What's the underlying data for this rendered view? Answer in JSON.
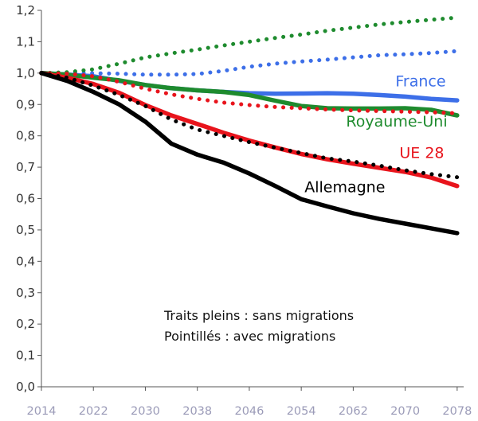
{
  "chart_data": {
    "type": "line",
    "x": [
      2014,
      2022,
      2030,
      2038,
      2046,
      2054,
      2062,
      2070,
      2078
    ],
    "xlim": [
      2014,
      2079
    ],
    "ylim": [
      0,
      1.2
    ],
    "yticks": [
      0,
      0.1,
      0.2,
      0.3,
      0.4,
      0.5,
      0.6,
      0.7,
      0.8,
      0.9,
      1.0,
      1.1,
      1.2
    ],
    "ytick_labels": [
      "0,0",
      "0,1",
      "0,2",
      "0,3",
      "0,4",
      "0,5",
      "0,6",
      "0,7",
      "0,8",
      "0,9",
      "1,0",
      "1,1",
      "1,2"
    ],
    "xtick_labels": [
      "2014",
      "2022",
      "2030",
      "2038",
      "2046",
      "2054",
      "2062",
      "2070",
      "2078"
    ],
    "grid": false,
    "annotations": [
      "Traits pleins : sans migrations",
      "Pointillés : avec migrations"
    ],
    "series": [
      {
        "name": "France",
        "color": "#3d6fe8",
        "style": "solid",
        "label_ref": "France",
        "points": [
          [
            2014,
            1.0
          ],
          [
            2018,
            0.995
          ],
          [
            2022,
            0.99
          ],
          [
            2026,
            0.975
          ],
          [
            2030,
            0.962
          ],
          [
            2034,
            0.952
          ],
          [
            2038,
            0.945
          ],
          [
            2042,
            0.94
          ],
          [
            2046,
            0.936
          ],
          [
            2050,
            0.934
          ],
          [
            2054,
            0.935
          ],
          [
            2058,
            0.936
          ],
          [
            2062,
            0.934
          ],
          [
            2066,
            0.93
          ],
          [
            2070,
            0.925
          ],
          [
            2074,
            0.918
          ],
          [
            2078,
            0.913
          ]
        ]
      },
      {
        "color": "#3d6fe8",
        "style": "dotted",
        "label_ref": "France",
        "points": [
          [
            2014,
            1.0
          ],
          [
            2020,
            1.0
          ],
          [
            2026,
            0.998
          ],
          [
            2030,
            0.995
          ],
          [
            2034,
            0.995
          ],
          [
            2038,
            0.997
          ],
          [
            2042,
            1.007
          ],
          [
            2046,
            1.02
          ],
          [
            2050,
            1.03
          ],
          [
            2054,
            1.037
          ],
          [
            2058,
            1.043
          ],
          [
            2062,
            1.05
          ],
          [
            2066,
            1.057
          ],
          [
            2070,
            1.06
          ],
          [
            2074,
            1.064
          ],
          [
            2078,
            1.07
          ]
        ]
      },
      {
        "name": "Royaume-Uni",
        "color": "#1e8b2e",
        "style": "solid",
        "label_ref": "Royaume-Uni",
        "points": [
          [
            2014,
            1.0
          ],
          [
            2018,
            0.995
          ],
          [
            2022,
            0.985
          ],
          [
            2026,
            0.977
          ],
          [
            2030,
            0.962
          ],
          [
            2034,
            0.952
          ],
          [
            2038,
            0.945
          ],
          [
            2042,
            0.94
          ],
          [
            2046,
            0.93
          ],
          [
            2050,
            0.912
          ],
          [
            2054,
            0.895
          ],
          [
            2058,
            0.888
          ],
          [
            2062,
            0.887
          ],
          [
            2066,
            0.887
          ],
          [
            2070,
            0.888
          ],
          [
            2074,
            0.883
          ],
          [
            2078,
            0.865
          ]
        ]
      },
      {
        "color": "#1e8b2e",
        "style": "dotted",
        "label_ref": "Royaume-Uni",
        "points": [
          [
            2014,
            1.0
          ],
          [
            2018,
            1.003
          ],
          [
            2022,
            1.012
          ],
          [
            2026,
            1.03
          ],
          [
            2030,
            1.05
          ],
          [
            2034,
            1.063
          ],
          [
            2038,
            1.075
          ],
          [
            2042,
            1.088
          ],
          [
            2046,
            1.1
          ],
          [
            2050,
            1.112
          ],
          [
            2054,
            1.123
          ],
          [
            2058,
            1.135
          ],
          [
            2062,
            1.145
          ],
          [
            2066,
            1.155
          ],
          [
            2070,
            1.163
          ],
          [
            2074,
            1.17
          ],
          [
            2078,
            1.177
          ]
        ]
      },
      {
        "name": "UE 28",
        "color": "#e8141c",
        "style": "solid",
        "label_ref": "UE 28",
        "points": [
          [
            2014,
            1.0
          ],
          [
            2018,
            0.985
          ],
          [
            2022,
            0.965
          ],
          [
            2026,
            0.937
          ],
          [
            2030,
            0.898
          ],
          [
            2034,
            0.865
          ],
          [
            2038,
            0.838
          ],
          [
            2042,
            0.81
          ],
          [
            2046,
            0.785
          ],
          [
            2050,
            0.763
          ],
          [
            2054,
            0.742
          ],
          [
            2058,
            0.725
          ],
          [
            2062,
            0.711
          ],
          [
            2066,
            0.698
          ],
          [
            2070,
            0.685
          ],
          [
            2074,
            0.667
          ],
          [
            2078,
            0.64
          ]
        ]
      },
      {
        "color": "#e8141c",
        "style": "dotted",
        "label_ref": "UE 28",
        "points": [
          [
            2014,
            1.0
          ],
          [
            2018,
            0.998
          ],
          [
            2022,
            0.99
          ],
          [
            2026,
            0.972
          ],
          [
            2030,
            0.95
          ],
          [
            2034,
            0.932
          ],
          [
            2038,
            0.918
          ],
          [
            2042,
            0.906
          ],
          [
            2046,
            0.898
          ],
          [
            2050,
            0.892
          ],
          [
            2054,
            0.888
          ],
          [
            2058,
            0.884
          ],
          [
            2062,
            0.881
          ],
          [
            2066,
            0.879
          ],
          [
            2070,
            0.877
          ],
          [
            2074,
            0.875
          ],
          [
            2078,
            0.872
          ]
        ]
      },
      {
        "name": "Allemagne",
        "color": "#000000",
        "style": "solid",
        "label_ref": "Allemagne",
        "points": [
          [
            2014,
            1.0
          ],
          [
            2018,
            0.975
          ],
          [
            2022,
            0.94
          ],
          [
            2026,
            0.9
          ],
          [
            2030,
            0.845
          ],
          [
            2034,
            0.775
          ],
          [
            2038,
            0.74
          ],
          [
            2042,
            0.715
          ],
          [
            2046,
            0.68
          ],
          [
            2050,
            0.64
          ],
          [
            2054,
            0.598
          ],
          [
            2058,
            0.575
          ],
          [
            2062,
            0.553
          ],
          [
            2066,
            0.535
          ],
          [
            2070,
            0.52
          ],
          [
            2074,
            0.505
          ],
          [
            2078,
            0.49
          ]
        ]
      },
      {
        "color": "#000000",
        "style": "dotted",
        "label_ref": "Allemagne",
        "points": [
          [
            2014,
            1.0
          ],
          [
            2018,
            0.985
          ],
          [
            2022,
            0.96
          ],
          [
            2026,
            0.93
          ],
          [
            2030,
            0.895
          ],
          [
            2034,
            0.852
          ],
          [
            2038,
            0.82
          ],
          [
            2042,
            0.8
          ],
          [
            2046,
            0.78
          ],
          [
            2050,
            0.762
          ],
          [
            2054,
            0.745
          ],
          [
            2058,
            0.728
          ],
          [
            2062,
            0.718
          ],
          [
            2066,
            0.705
          ],
          [
            2070,
            0.69
          ],
          [
            2074,
            0.678
          ],
          [
            2078,
            0.668
          ]
        ]
      }
    ],
    "series_labels": [
      {
        "text": "France",
        "color": "#3d6fe8",
        "at": [
          2068.5,
          0.958
        ],
        "anchor": "start"
      },
      {
        "text": "Royaume-Uni",
        "color": "#1e8b2e",
        "at": [
          2076.5,
          0.83
        ],
        "anchor": "end"
      },
      {
        "text": "UE 28",
        "color": "#e8141c",
        "at": [
          2076,
          0.73
        ],
        "anchor": "end"
      },
      {
        "text": "Allemagne",
        "color": "#000000",
        "at": [
          2054.5,
          0.62
        ],
        "anchor": "start"
      }
    ]
  }
}
